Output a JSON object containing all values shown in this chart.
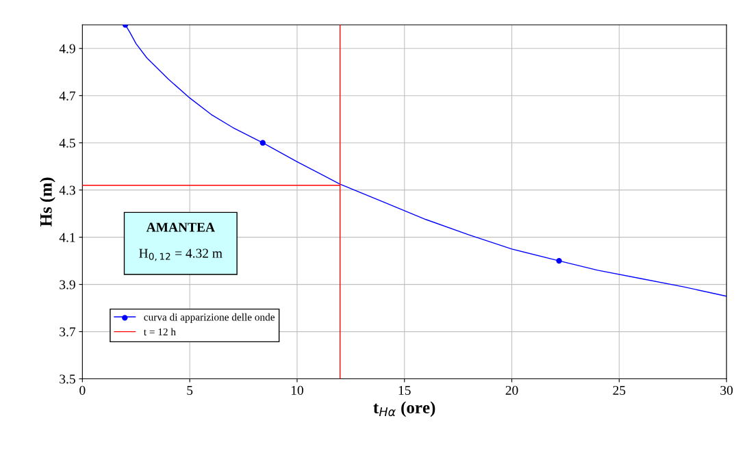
{
  "chart_data": {
    "type": "line",
    "xlabel": "t$_{Hα}$ (ore)",
    "ylabel": "Hs (m)",
    "annotations": [
      "AMANTEA",
      "H$_{0,12}$ = 4.32 m"
    ],
    "xlim": [
      0,
      30
    ],
    "xticks": [
      0,
      5,
      10,
      15,
      20,
      25,
      30
    ],
    "ylim": [
      3.5,
      5.0
    ],
    "yticks": [
      3.5,
      3.7,
      3.9,
      4.1,
      4.3,
      4.5,
      4.7,
      4.9
    ],
    "grid": true,
    "legend": "lower left",
    "series": [
      {
        "name": "curva di apparizione delle onde",
        "marker": "none",
        "color": "#0000ff",
        "x": [
          2,
          2.2,
          2.5,
          3,
          4,
          5,
          6,
          7,
          8.4,
          10,
          12,
          14,
          16,
          18,
          20,
          22.2,
          24,
          26,
          28,
          30
        ],
        "values": [
          5.0,
          4.97,
          4.92,
          4.86,
          4.77,
          4.69,
          4.62,
          4.565,
          4.5,
          4.42,
          4.325,
          4.25,
          4.175,
          4.11,
          4.05,
          4.0,
          3.96,
          3.925,
          3.89,
          3.85
        ]
      },
      {
        "type": "scatter",
        "marker": "circle",
        "color": "#0000ff",
        "x": [
          2,
          8.4,
          22.2
        ],
        "values": [
          5.0,
          4.5,
          4.0
        ]
      },
      {
        "name": "t = 12 h",
        "marker": "none",
        "color": "#ff0000",
        "x": [
          0,
          12,
          12,
          12
        ],
        "values": [
          4.32,
          4.32,
          3.5,
          5.0
        ]
      }
    ]
  }
}
